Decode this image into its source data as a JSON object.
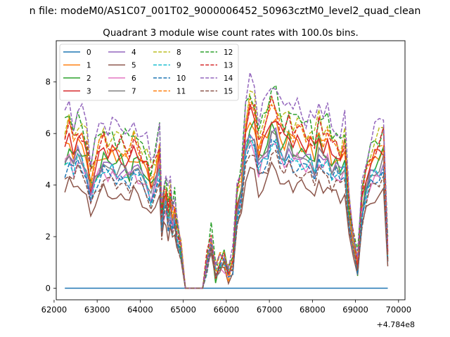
{
  "figure": {
    "suptitle": "n file: modeM0/AS1C07_001T02_9000006452_50963cztM0_level2_quad_clean",
    "title": "Quadrant 3 module wise count rates with 100.0s bins.",
    "offset_label": "+4.784e8"
  },
  "chart_data": {
    "type": "line",
    "title": "Quadrant 3 module wise count rates with 100.0s bins.",
    "xlabel": "",
    "ylabel": "",
    "xlim": [
      62050,
      70150
    ],
    "ylim": [
      -0.45,
      9.6
    ],
    "x_offset": 478400000,
    "x_ticks": [
      62000,
      63000,
      64000,
      65000,
      66000,
      67000,
      68000,
      69000,
      70000
    ],
    "x_tick_labels": [
      "62000",
      "63000",
      "64000",
      "65000",
      "66000",
      "67000",
      "68000",
      "69000",
      "70000"
    ],
    "y_ticks": [
      0,
      2,
      4,
      6,
      8
    ],
    "y_tick_labels": [
      "0",
      "2",
      "4",
      "6",
      "8"
    ],
    "grid": false,
    "legend_position": "top-left",
    "legend_columns": 4,
    "base_x": [
      62250,
      62350,
      62450,
      62550,
      62650,
      62750,
      62850,
      62950,
      63050,
      63150,
      63250,
      63350,
      63450,
      63550,
      63650,
      63750,
      63850,
      63950,
      64050,
      64150,
      64250,
      64350,
      64450,
      64500,
      64550,
      64600,
      64650,
      64700,
      64750,
      64800,
      64850,
      64950,
      65050,
      65250,
      65450,
      65550,
      65650,
      65750,
      65850,
      65950,
      66050,
      66150,
      66250,
      66350,
      66450,
      66550,
      66650,
      66750,
      66850,
      66950,
      67050,
      67150,
      67250,
      67350,
      67450,
      67550,
      67650,
      67750,
      67850,
      67950,
      68050,
      68150,
      68250,
      68350,
      68450,
      68550,
      68650,
      68750,
      68850,
      68950,
      69050,
      69150,
      69250,
      69350,
      69450,
      69550,
      69650,
      69750
    ],
    "base_y": [
      4.9,
      5.3,
      4.8,
      5.2,
      5.0,
      4.6,
      3.6,
      4.2,
      4.6,
      4.9,
      4.6,
      4.7,
      4.5,
      4.6,
      4.5,
      4.4,
      4.8,
      4.6,
      4.3,
      4.1,
      3.6,
      4.0,
      4.7,
      2.4,
      3.1,
      3.3,
      2.6,
      3.0,
      2.4,
      2.7,
      2.0,
      1.3,
      0.0,
      0.0,
      0.0,
      0.9,
      1.7,
      0.6,
      0.9,
      1.0,
      0.5,
      0.9,
      3.0,
      3.6,
      5.4,
      6.0,
      5.8,
      4.7,
      5.1,
      5.4,
      6.0,
      5.9,
      5.3,
      5.1,
      5.4,
      5.0,
      5.2,
      5.1,
      4.9,
      5.0,
      4.6,
      5.3,
      4.9,
      5.1,
      4.6,
      4.7,
      4.4,
      4.8,
      2.6,
      1.6,
      0.8,
      3.0,
      3.8,
      4.3,
      4.5,
      4.6,
      4.9,
      1.2
    ],
    "series": [
      {
        "name": "0",
        "color": "#1f77b4",
        "style": "solid",
        "scale": 0.0,
        "jitter": 0.0
      },
      {
        "name": "1",
        "color": "#ff7f0e",
        "style": "solid",
        "scale": 1.1,
        "jitter": 0.25
      },
      {
        "name": "2",
        "color": "#2ca02c",
        "style": "solid",
        "scale": 1.05,
        "jitter": 0.3
      },
      {
        "name": "3",
        "color": "#d62728",
        "style": "solid",
        "scale": 1.12,
        "jitter": 0.28
      },
      {
        "name": "4",
        "color": "#9467bd",
        "style": "solid",
        "scale": 1.0,
        "jitter": 0.2
      },
      {
        "name": "5",
        "color": "#8c564b",
        "style": "solid",
        "scale": 0.78,
        "jitter": 0.15
      },
      {
        "name": "6",
        "color": "#e377c2",
        "style": "solid",
        "scale": 0.95,
        "jitter": 0.22
      },
      {
        "name": "7",
        "color": "#7f7f7f",
        "style": "solid",
        "scale": 1.0,
        "jitter": 0.2
      },
      {
        "name": "8",
        "color": "#bcbd22",
        "style": "dashed",
        "scale": 1.25,
        "jitter": 0.3
      },
      {
        "name": "9",
        "color": "#17becf",
        "style": "dashed",
        "scale": 0.96,
        "jitter": 0.2
      },
      {
        "name": "10",
        "color": "#1f77b4",
        "style": "dashed",
        "scale": 0.93,
        "jitter": 0.2
      },
      {
        "name": "11",
        "color": "#ff7f0e",
        "style": "dashed",
        "scale": 1.18,
        "jitter": 0.25
      },
      {
        "name": "12",
        "color": "#2ca02c",
        "style": "dashed",
        "scale": 1.28,
        "jitter": 0.3
      },
      {
        "name": "13",
        "color": "#d62728",
        "style": "dashed",
        "scale": 1.2,
        "jitter": 0.25
      },
      {
        "name": "14",
        "color": "#9467bd",
        "style": "dashed",
        "scale": 1.36,
        "jitter": 0.3
      },
      {
        "name": "15",
        "color": "#8c564b",
        "style": "dashed",
        "scale": 0.88,
        "jitter": 0.2
      }
    ]
  }
}
